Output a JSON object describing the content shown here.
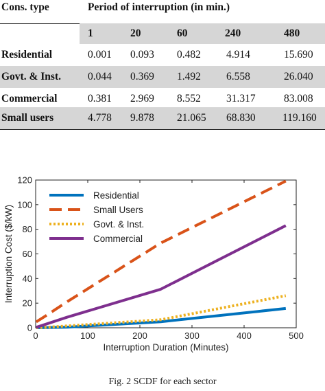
{
  "table": {
    "type_header": "Cons. type",
    "period_header": "Period of interruption (in min.)",
    "periods": [
      "1",
      "20",
      "60",
      "240",
      "480"
    ],
    "rows": [
      {
        "label": "Residential",
        "values": [
          "0.001",
          "0.093",
          "0.482",
          "4.914",
          "15.690"
        ]
      },
      {
        "label": "Govt. & Inst.",
        "values": [
          "0.044",
          "0.369",
          "1.492",
          "6.558",
          "26.040"
        ]
      },
      {
        "label": "Commercial",
        "values": [
          "0.381",
          "2.969",
          "8.552",
          "31.317",
          "83.008"
        ]
      },
      {
        "label": "Small users",
        "values": [
          "4.778",
          "9.878",
          "21.065",
          "68.830",
          "119.160"
        ]
      }
    ]
  },
  "chart_data": {
    "type": "line",
    "xlabel": "Interruption Duration (Minutes)",
    "ylabel": "Interruption Cost ($/kW)",
    "xlim": [
      0,
      500
    ],
    "ylim": [
      0,
      120
    ],
    "xticks": [
      "0",
      "100",
      "200",
      "300",
      "400",
      "500"
    ],
    "yticks": [
      "0",
      "20",
      "40",
      "60",
      "80",
      "100",
      "120"
    ],
    "grid": false,
    "legend_position": "top-left",
    "x": [
      1,
      20,
      60,
      240,
      480
    ],
    "series": [
      {
        "name": "Residential",
        "values": [
          0.001,
          0.093,
          0.482,
          4.914,
          15.69
        ],
        "color": "#0072BD",
        "style": "solid"
      },
      {
        "name": "Small Users",
        "values": [
          4.778,
          9.878,
          21.065,
          68.83,
          119.16
        ],
        "color": "#D95319",
        "style": "dashed"
      },
      {
        "name": "Govt. & Inst.",
        "values": [
          0.044,
          0.369,
          1.492,
          6.558,
          26.04
        ],
        "color": "#EDB120",
        "style": "dotted"
      },
      {
        "name": "Commercial",
        "values": [
          0.381,
          2.969,
          8.552,
          31.317,
          83.008
        ],
        "color": "#7E2F8E",
        "style": "solid"
      }
    ]
  },
  "caption": "Fig. 2 SCDF for each sector"
}
